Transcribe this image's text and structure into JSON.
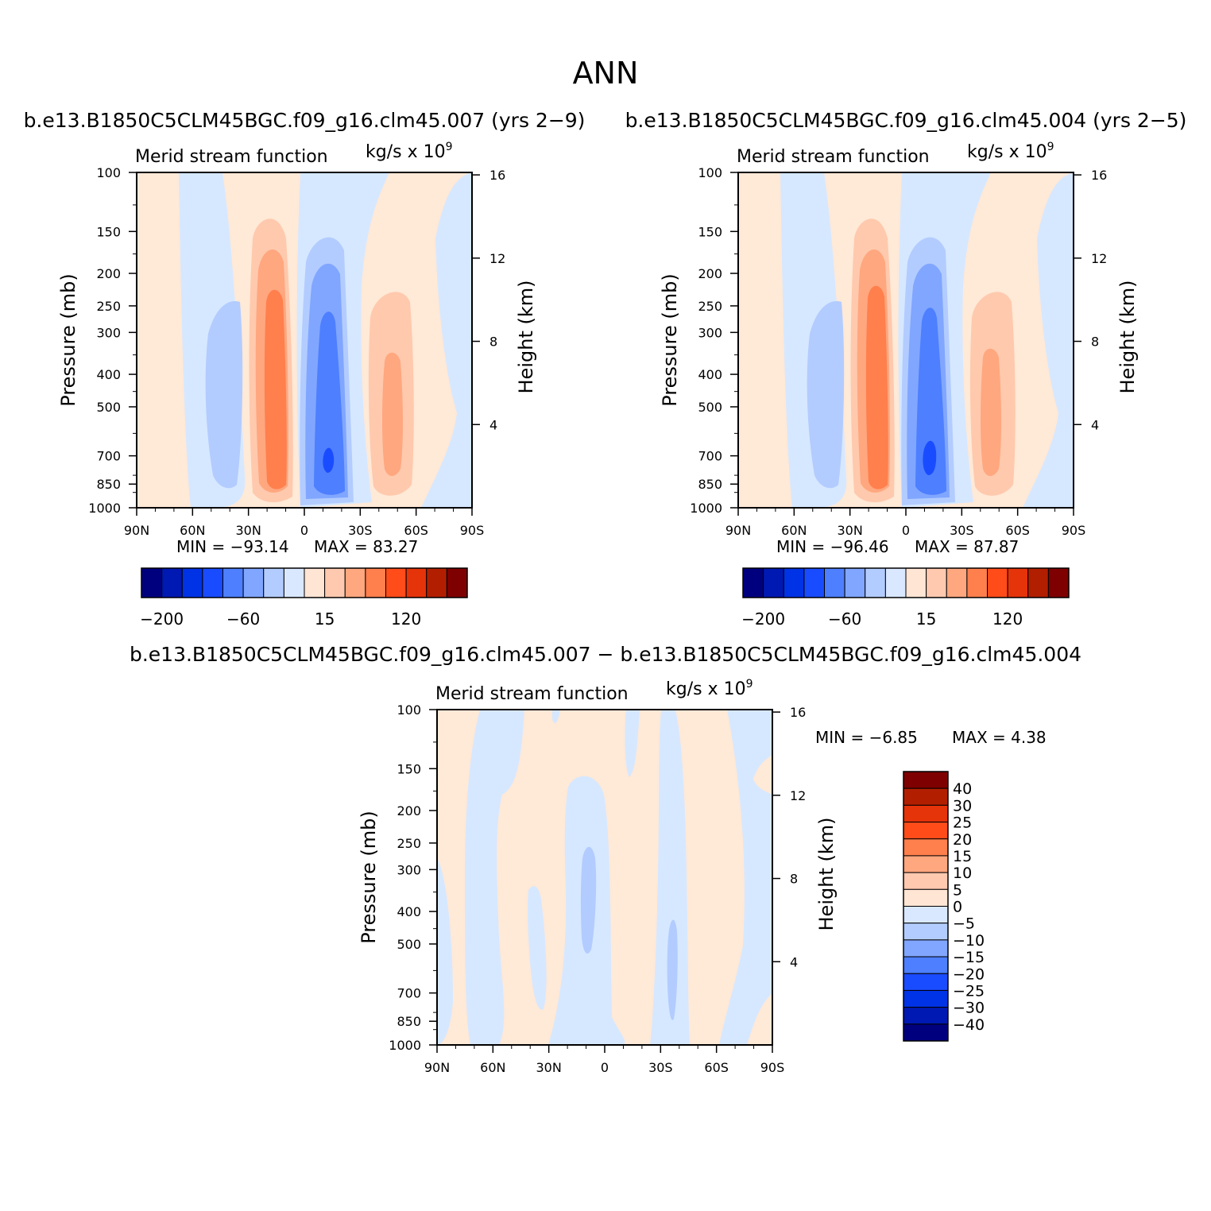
{
  "figure_title": "ANN",
  "colors": {
    "main_scale": [
      "#00007f",
      "#0019b2",
      "#0033e5",
      "#1a4cff",
      "#4d7fff",
      "#80a6ff",
      "#b3ccff",
      "#d9e8ff",
      "#ffe5d4",
      "#ffc9b0",
      "#ffa77f",
      "#ff7f4d",
      "#ff4c19",
      "#e5330a",
      "#b21f00",
      "#7f0000"
    ],
    "diff_scale": [
      "#00007f",
      "#0019b2",
      "#0033e5",
      "#1a4cff",
      "#4d7fff",
      "#80a6ff",
      "#b3ccff",
      "#d9e8ff",
      "#ffe5d4",
      "#ffc9b0",
      "#ffa77f",
      "#ff7f4d",
      "#ff4c19",
      "#e5330a",
      "#b21f00",
      "#7f0000"
    ]
  },
  "chart_data": [
    {
      "id": "panel-1",
      "type": "heatmap",
      "title": "b.e13.B1850C5CLM45BGC.f09_g16.clm45.007 (yrs 2−9)",
      "left_label": "Merid stream function",
      "units_label": "kg/s x 10",
      "units_exponent": "9",
      "xlabel": "",
      "ylabel": "Pressure (mb)",
      "ylabel_right": "Height (km)",
      "x_ticks": [
        "90N",
        "60N",
        "30N",
        "0",
        "30S",
        "60S",
        "90S"
      ],
      "y_ticks": [
        "100",
        "150",
        "200",
        "250",
        "300",
        "400",
        "500",
        "700",
        "850",
        "1000"
      ],
      "y_right_ticks": [
        "16",
        "12",
        "8",
        "4"
      ],
      "min_label": "MIN = −93.14",
      "max_label": "MAX = 83.27",
      "min": -93.14,
      "max": 83.27,
      "colorbar_labels": [
        "−200",
        "−60",
        "15",
        "120"
      ]
    },
    {
      "id": "panel-2",
      "type": "heatmap",
      "title": "b.e13.B1850C5CLM45BGC.f09_g16.clm45.004 (yrs 2−5)",
      "left_label": "Merid stream function",
      "units_label": "kg/s x 10",
      "units_exponent": "9",
      "xlabel": "",
      "ylabel": "Pressure (mb)",
      "ylabel_right": "Height (km)",
      "x_ticks": [
        "90N",
        "60N",
        "30N",
        "0",
        "30S",
        "60S",
        "90S"
      ],
      "y_ticks": [
        "100",
        "150",
        "200",
        "250",
        "300",
        "400",
        "500",
        "700",
        "850",
        "1000"
      ],
      "y_right_ticks": [
        "16",
        "12",
        "8",
        "4"
      ],
      "min_label": "MIN = −96.46",
      "max_label": "MAX = 87.87",
      "min": -96.46,
      "max": 87.87,
      "colorbar_labels": [
        "−200",
        "−60",
        "15",
        "120"
      ]
    },
    {
      "id": "panel-3",
      "type": "heatmap",
      "title": "b.e13.B1850C5CLM45BGC.f09_g16.clm45.007 − b.e13.B1850C5CLM45BGC.f09_g16.clm45.004",
      "left_label": "Merid stream function",
      "units_label": "kg/s x 10",
      "units_exponent": "9",
      "xlabel": "",
      "ylabel": "Pressure (mb)",
      "ylabel_right": "Height (km)",
      "x_ticks": [
        "90N",
        "60N",
        "30N",
        "0",
        "30S",
        "60S",
        "90S"
      ],
      "y_ticks": [
        "100",
        "150",
        "200",
        "250",
        "300",
        "400",
        "500",
        "700",
        "850",
        "1000"
      ],
      "y_right_ticks": [
        "16",
        "12",
        "8",
        "4"
      ],
      "min_label": "MIN = −6.85",
      "max_label": "MAX = 4.38",
      "min": -6.85,
      "max": 4.38,
      "colorbar_labels": [
        "40",
        "30",
        "25",
        "20",
        "15",
        "10",
        "5",
        "0",
        "−5",
        "−10",
        "−15",
        "−20",
        "−25",
        "−30",
        "−40"
      ]
    }
  ]
}
